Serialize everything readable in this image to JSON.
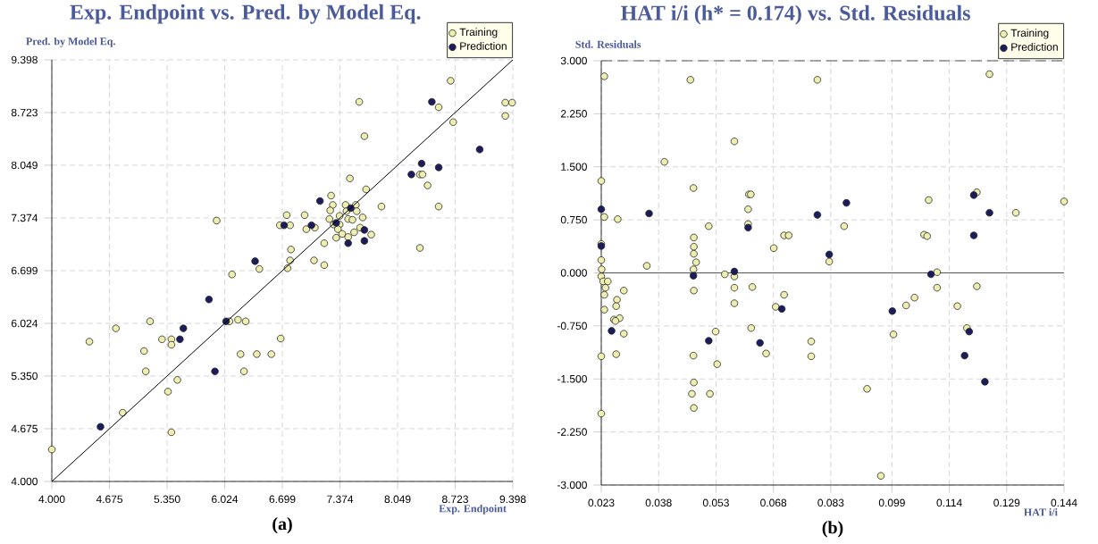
{
  "chart_data": [
    {
      "type": "scatter",
      "title": "Exp. Endpoint vs. Pred. by Model Eq.",
      "xlabel": "Exp. Endpoint",
      "ylabel": "Pred. by Model Eq.",
      "annotations": [
        "(a)"
      ],
      "xlim": [
        4.0,
        9.398
      ],
      "ylim": [
        4.0,
        9.398
      ],
      "xticks": [
        {
          "value": 4.0,
          "label": "4.000"
        },
        {
          "value": 4.675,
          "label": "4.675"
        },
        {
          "value": 5.35,
          "label": "5.350"
        },
        {
          "value": 6.024,
          "label": "6.024"
        },
        {
          "value": 6.699,
          "label": "6.699"
        },
        {
          "value": 7.374,
          "label": "7.374"
        },
        {
          "value": 8.049,
          "label": "8.049"
        },
        {
          "value": 8.723,
          "label": "8.723"
        },
        {
          "value": 9.398,
          "label": "9.398"
        }
      ],
      "yticks": [
        {
          "value": 4.0,
          "label": "4.000"
        },
        {
          "value": 4.675,
          "label": "4.675"
        },
        {
          "value": 5.35,
          "label": "5.350"
        },
        {
          "value": 6.024,
          "label": "6.024"
        },
        {
          "value": 6.699,
          "label": "6.699"
        },
        {
          "value": 7.374,
          "label": "7.374"
        },
        {
          "value": 8.049,
          "label": "8.049"
        },
        {
          "value": 8.723,
          "label": "8.723"
        },
        {
          "value": 9.398,
          "label": "9.398"
        }
      ],
      "grid": true,
      "legend": "top right",
      "marker": "circle",
      "series": [
        {
          "name": "Training",
          "color": "#eeeeb0",
          "x": [
            4.0,
            4.44,
            4.75,
            4.83,
            5.08,
            5.1,
            5.15,
            5.29,
            5.4,
            5.4,
            5.36,
            5.47,
            5.4,
            5.93,
            6.11,
            6.08,
            6.18,
            6.27,
            6.21,
            6.4,
            6.57,
            6.25,
            6.43,
            6.68,
            6.67,
            6.75,
            6.79,
            6.8,
            6.79,
            6.76,
            7.6,
            7.66,
            7.49,
            7.68,
            7.27,
            7.29,
            7.26,
            6.96,
            6.98,
            7.08,
            7.25,
            7.3,
            7.37,
            7.44,
            7.45,
            7.56,
            7.57,
            7.47,
            7.52,
            7.64,
            7.37,
            7.35,
            7.4,
            7.33,
            7.54,
            7.61,
            7.74,
            7.47,
            7.19,
            7.07,
            7.19,
            7.86,
            8.31,
            8.34,
            8.4,
            8.53,
            8.31,
            8.67,
            8.53,
            8.7,
            9.31,
            9.39,
            9.31
          ],
          "values": [
            4.41,
            5.79,
            5.96,
            4.88,
            5.67,
            5.41,
            6.05,
            5.82,
            5.82,
            5.75,
            5.15,
            5.3,
            4.63,
            7.34,
            6.65,
            6.05,
            6.07,
            6.05,
            5.63,
            5.63,
            5.63,
            5.41,
            6.72,
            5.83,
            7.28,
            7.41,
            7.28,
            6.97,
            6.83,
            6.73,
            8.86,
            8.42,
            7.88,
            7.74,
            7.66,
            7.54,
            7.47,
            7.41,
            7.23,
            7.25,
            7.36,
            7.29,
            7.4,
            7.54,
            7.46,
            7.54,
            7.46,
            7.36,
            7.35,
            7.38,
            7.29,
            7.23,
            7.17,
            7.12,
            7.19,
            7.25,
            7.16,
            7.13,
            7.05,
            6.83,
            6.77,
            7.52,
            7.93,
            7.93,
            7.79,
            7.52,
            6.99,
            9.13,
            8.79,
            8.6,
            8.85,
            8.85,
            8.68
          ]
        },
        {
          "name": "Prediction",
          "color": "#1c1c5c",
          "x": [
            4.57,
            5.5,
            5.54,
            5.84,
            5.91,
            6.04,
            6.38,
            6.72,
            8.45,
            9.01,
            8.33,
            8.53,
            8.21,
            7.14,
            7.04,
            7.5,
            7.33,
            7.66,
            7.47,
            7.66
          ],
          "values": [
            4.7,
            5.82,
            5.96,
            6.33,
            5.41,
            6.05,
            6.82,
            7.28,
            8.86,
            8.25,
            8.07,
            8.02,
            7.93,
            7.59,
            7.28,
            7.5,
            7.31,
            7.22,
            7.05,
            7.08
          ]
        },
        {
          "type": "line",
          "color": "#000000",
          "marker": "none",
          "x": [
            4.0,
            9.398
          ],
          "values": [
            4.0,
            9.398
          ]
        }
      ]
    },
    {
      "type": "scatter",
      "title": "HAT i/i (h* = 0.174) vs. Std. Residuals",
      "xlabel": "HAT i/i",
      "ylabel": "Std. Residuals",
      "annotations": [
        "(b)"
      ],
      "xlim": [
        0.023,
        0.144
      ],
      "ylim": [
        -3.0,
        3.0
      ],
      "xticks": [
        0.023,
        0.038,
        0.053,
        0.068,
        0.083,
        0.099,
        0.114,
        0.129,
        0.144
      ],
      "yticks": [
        {
          "value": -3.0,
          "label": "-3.000"
        },
        {
          "value": -2.25,
          "label": "-2.250"
        },
        {
          "value": -1.5,
          "label": "-1.500"
        },
        {
          "value": -0.75,
          "label": "-0.750"
        },
        {
          "value": 0.0,
          "label": "0.000"
        },
        {
          "value": 0.75,
          "label": "0.750"
        },
        {
          "value": 1.5,
          "label": "1.500"
        },
        {
          "value": 2.25,
          "label": "2.250"
        },
        {
          "value": 3.0,
          "label": "3.000"
        }
      ],
      "grid": true,
      "legend": "top right",
      "marker": "circle",
      "ref_lines": [
        {
          "axis": "y",
          "value": 0.0,
          "color": "#555555",
          "line_style": "solid"
        },
        {
          "axis": "y",
          "value": 3.0,
          "color": "#555555",
          "line_style": "dashed"
        }
      ],
      "series": [
        {
          "name": "Training",
          "color": "#eeeeb0",
          "x": [
            0.0238,
            0.023,
            0.0238,
            0.023,
            0.023,
            0.0231,
            0.023,
            0.0235,
            0.0247,
            0.0241,
            0.0238,
            0.0238,
            0.0273,
            0.0271,
            0.0269,
            0.0289,
            0.0263,
            0.0278,
            0.0267,
            0.0289,
            0.023,
            0.0269,
            0.023,
            0.0349,
            0.0395,
            0.0463,
            0.0471,
            0.0472,
            0.0472,
            0.0472,
            0.0478,
            0.0471,
            0.0472,
            0.0471,
            0.0472,
            0.0467,
            0.0514,
            0.0472,
            0.0511,
            0.0529,
            0.0533,
            0.0553,
            0.0578,
            0.0578,
            0.0578,
            0.0578,
            0.0616,
            0.0621,
            0.0614,
            0.0614,
            0.0625,
            0.0622,
            0.0661,
            0.0681,
            0.0686,
            0.0708,
            0.0708,
            0.072,
            0.0795,
            0.0779,
            0.0779,
            0.0826,
            0.0865,
            0.0925,
            0.0961,
            0.0994,
            0.1027,
            0.1049,
            0.1074,
            0.1082,
            0.1086,
            0.1108,
            0.1108,
            0.1161,
            0.1186,
            0.1212,
            0.1212,
            0.1245,
            0.1314,
            0.144
          ],
          "values": [
            2.78,
            1.3,
            0.79,
            0.41,
            0.18,
            0.05,
            -0.05,
            -0.12,
            -0.12,
            -0.21,
            -0.31,
            -0.52,
            0.76,
            -0.38,
            -0.47,
            -0.25,
            -0.66,
            -0.64,
            -0.68,
            -0.86,
            -1.18,
            -1.15,
            -1.99,
            0.1,
            1.57,
            2.73,
            1.2,
            0.5,
            0.37,
            0.27,
            0.15,
            0.05,
            -0.25,
            -1.17,
            -1.55,
            -1.71,
            -1.71,
            -1.91,
            0.66,
            -0.83,
            -1.29,
            -0.02,
            1.86,
            -0.05,
            -0.21,
            -0.43,
            1.11,
            1.11,
            0.9,
            0.69,
            -0.2,
            -0.78,
            -1.14,
            0.35,
            -0.48,
            -0.31,
            0.53,
            0.53,
            2.73,
            -0.97,
            -1.18,
            0.16,
            0.66,
            -1.64,
            -2.87,
            -0.87,
            -0.46,
            -0.35,
            0.54,
            0.52,
            1.03,
            0.01,
            -0.21,
            -0.47,
            -0.78,
            1.14,
            -0.19,
            2.81,
            0.85,
            1.01
          ]
        },
        {
          "name": "Prediction",
          "color": "#1c1c5c",
          "x": [
            0.023,
            0.023,
            0.0257,
            0.0355,
            0.0471,
            0.0511,
            0.0578,
            0.0614,
            0.0645,
            0.0702,
            0.0795,
            0.0826,
            0.0871,
            0.0991,
            0.1092,
            0.1204,
            0.1245,
            0.1204,
            0.1192,
            0.118,
            0.1233
          ],
          "values": [
            0.9,
            0.38,
            -0.82,
            0.84,
            -0.04,
            -0.96,
            0.02,
            0.64,
            -0.99,
            -0.51,
            0.82,
            0.26,
            0.99,
            -0.54,
            -0.02,
            1.1,
            0.85,
            0.53,
            -0.83,
            -1.17,
            -1.54
          ]
        }
      ]
    }
  ]
}
